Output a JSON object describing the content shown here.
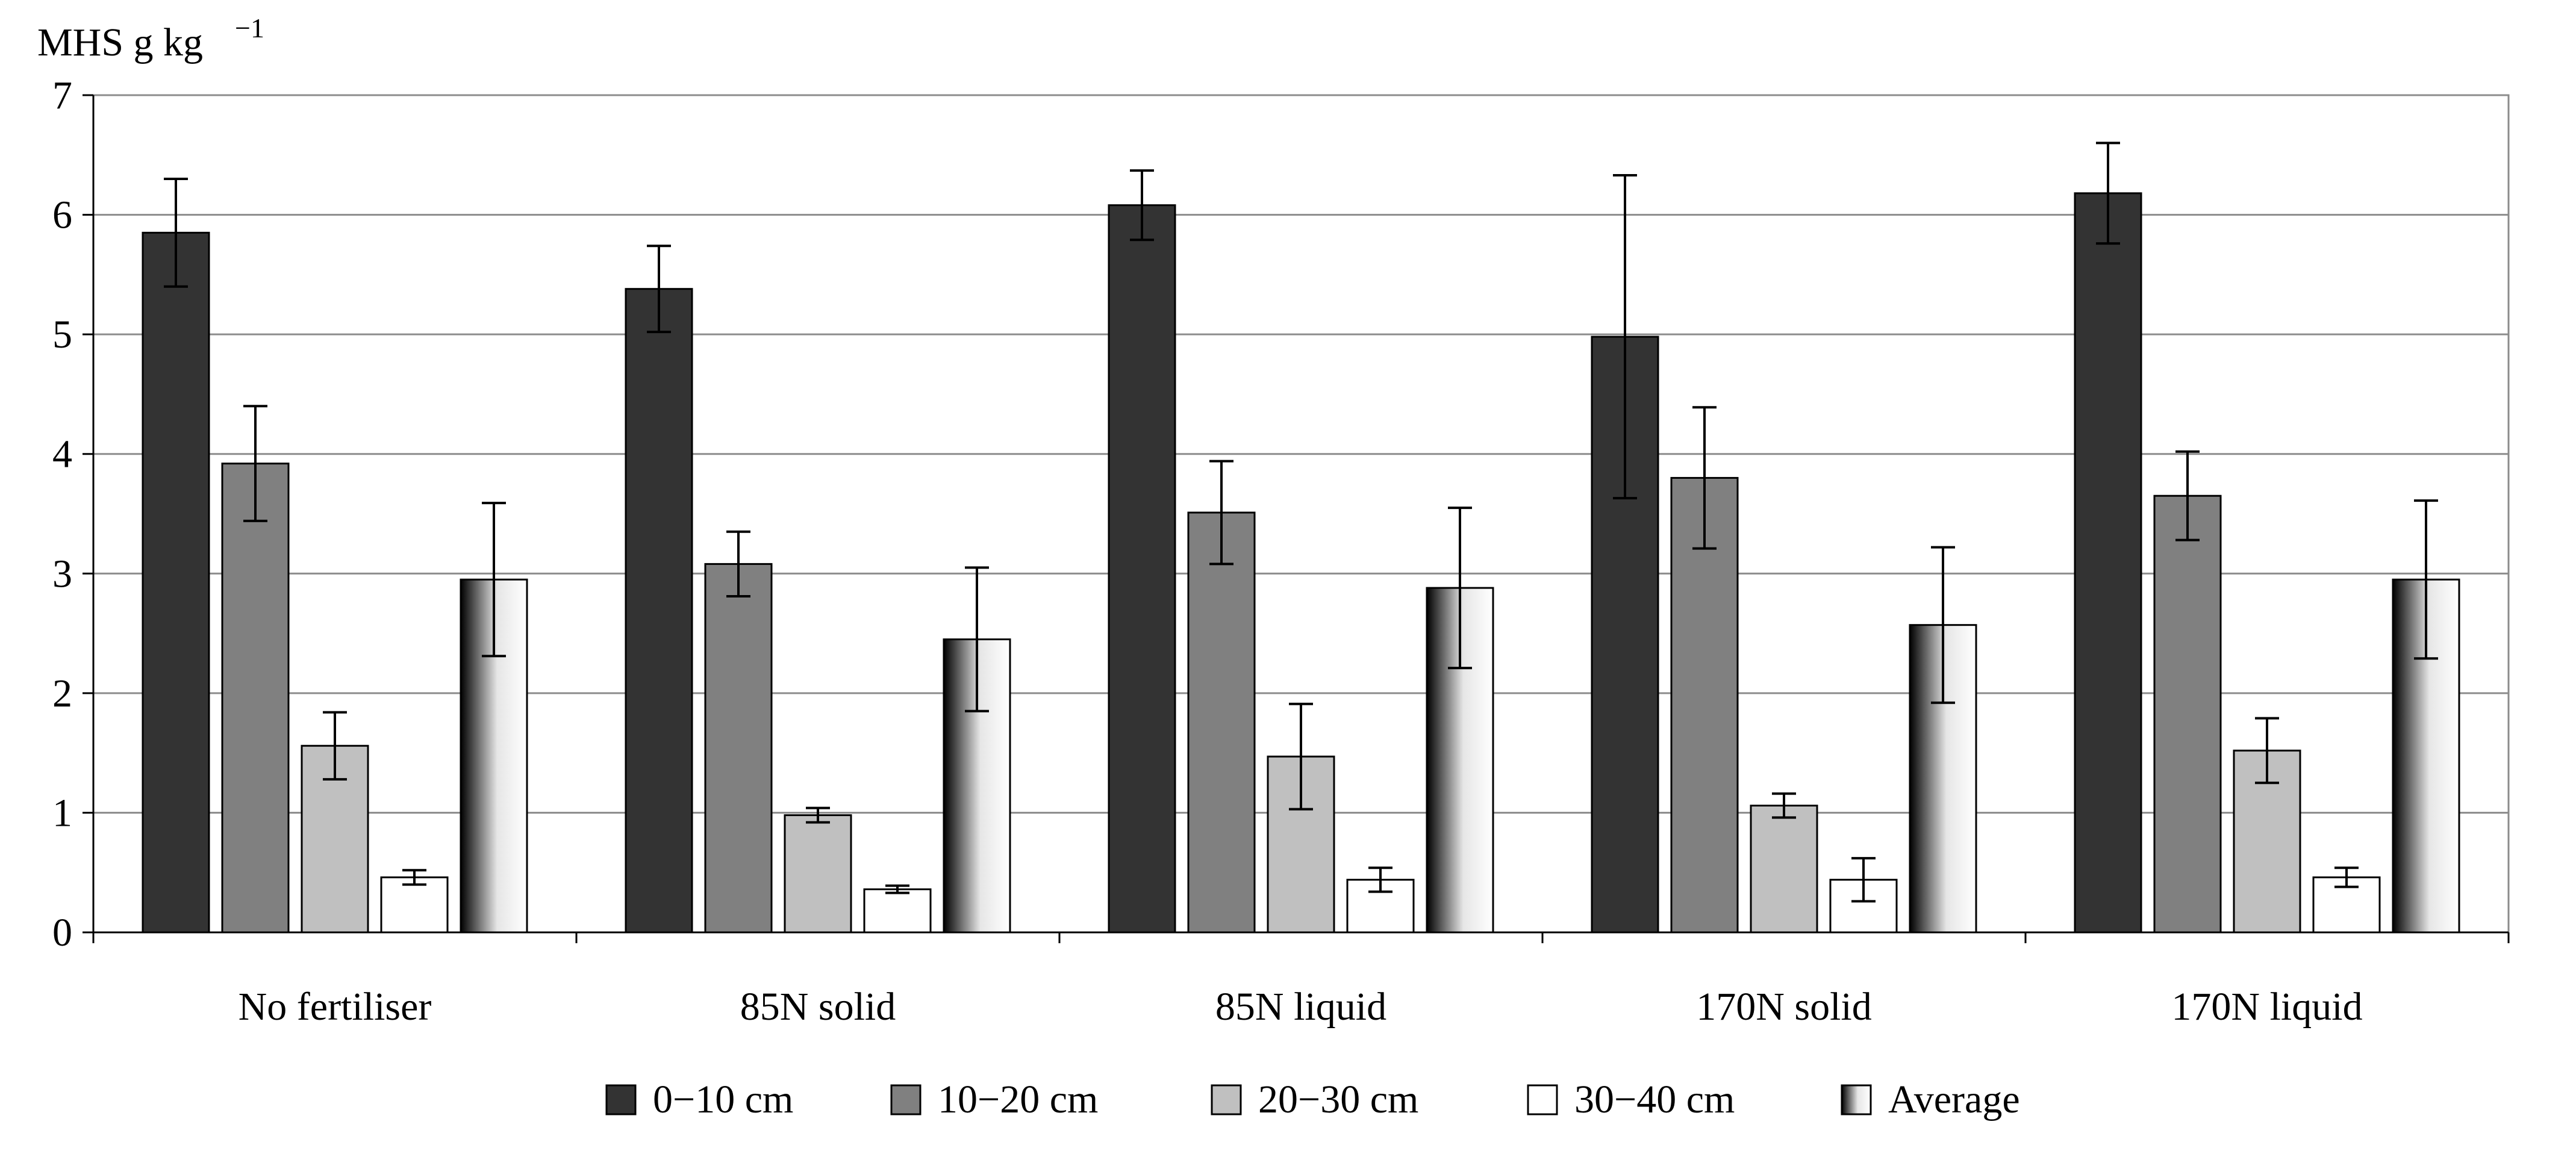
{
  "chart_data": {
    "type": "bar",
    "title": "",
    "ylabel": "MHS g kg",
    "ylabel_superscript": "−1",
    "xlabel": "",
    "ylim": [
      0,
      7
    ],
    "yticks": [
      "0",
      "1",
      "2",
      "3",
      "4",
      "5",
      "6",
      "7"
    ],
    "grid": true,
    "legend_position": "bottom",
    "categories": [
      "No fertiliser",
      "85N solid",
      "85N liquid",
      "170N solid",
      "170N liquid"
    ],
    "series": [
      {
        "name": "0−10 cm",
        "color": "#333333",
        "values": [
          5.85,
          5.38,
          6.08,
          4.98,
          6.18
        ],
        "errors": [
          0.45,
          0.36,
          0.29,
          1.35,
          0.42
        ]
      },
      {
        "name": "10−20 cm",
        "color": "#808080",
        "values": [
          3.92,
          3.08,
          3.51,
          3.8,
          3.65
        ],
        "errors": [
          0.48,
          0.27,
          0.43,
          0.59,
          0.37
        ]
      },
      {
        "name": "20−30 cm",
        "color": "#c0c0c0",
        "values": [
          1.56,
          0.98,
          1.47,
          1.06,
          1.52
        ],
        "errors": [
          0.28,
          0.06,
          0.44,
          0.1,
          0.27
        ]
      },
      {
        "name": "30−40 cm",
        "color": "#ffffff",
        "values": [
          0.46,
          0.36,
          0.44,
          0.44,
          0.46
        ],
        "errors": [
          0.06,
          0.03,
          0.1,
          0.18,
          0.08
        ]
      },
      {
        "name": "Average",
        "color": "gradient",
        "values": [
          2.95,
          2.45,
          2.88,
          2.57,
          2.95
        ],
        "errors": [
          0.64,
          0.6,
          0.67,
          0.65,
          0.66
        ]
      }
    ]
  }
}
